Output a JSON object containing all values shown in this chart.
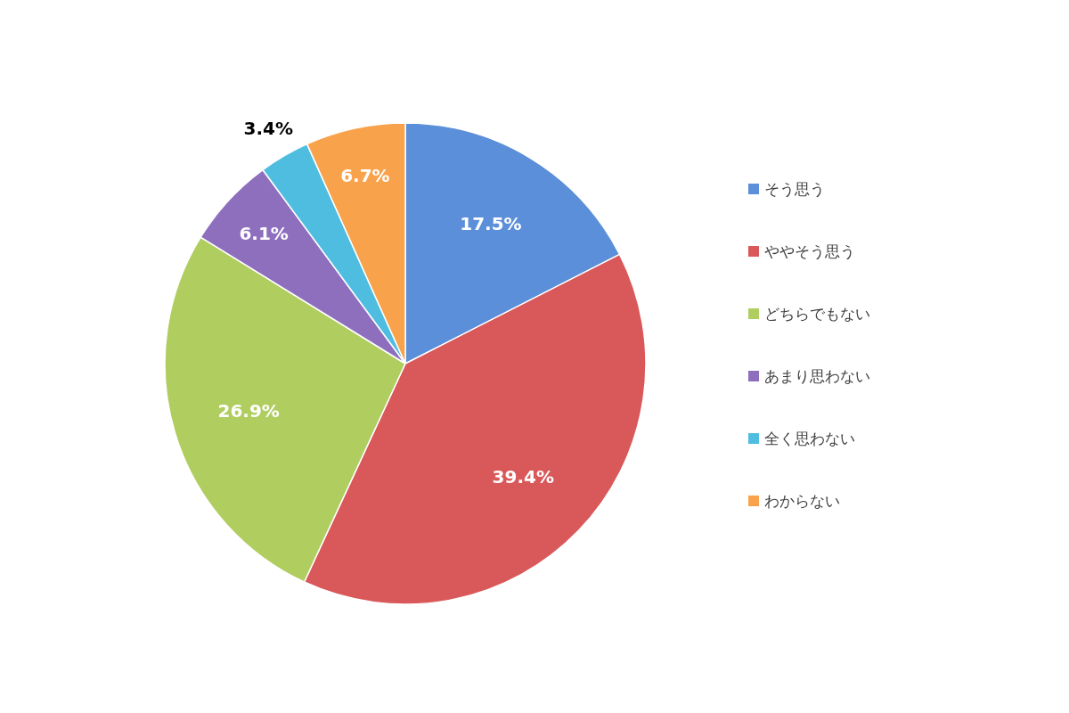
{
  "chart_data": {
    "type": "pie",
    "categories": [
      "そう思う",
      "ややそう思う",
      "どちらでもない",
      "あまり思わない",
      "全く思わない",
      "わからない"
    ],
    "values": [
      17.5,
      39.4,
      26.9,
      6.1,
      3.4,
      6.7
    ],
    "colors": [
      "#5b8fd9",
      "#d9585a",
      "#b0cd60",
      "#8e6fbd",
      "#4fbde0",
      "#f9a24c"
    ],
    "value_labels": [
      "17.5%",
      "39.4%",
      "26.9%",
      "6.1%",
      "3.4%",
      "6.7%"
    ],
    "legend": "right"
  }
}
